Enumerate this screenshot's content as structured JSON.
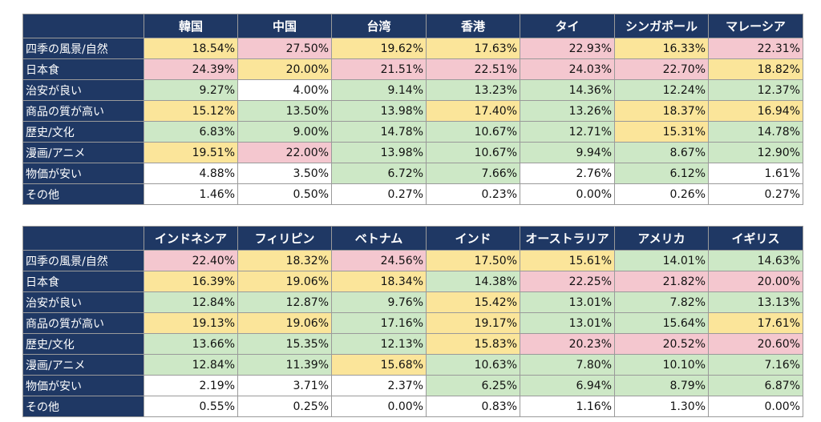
{
  "chart_data": [
    {
      "type": "table",
      "columns": [
        "韓国",
        "中国",
        "台湾",
        "香港",
        "タイ",
        "シンガポール",
        "マレーシア"
      ],
      "rows": [
        {
          "label": "四季の風景/自然",
          "values": [
            "18.54%",
            "27.50%",
            "19.62%",
            "17.63%",
            "22.93%",
            "16.33%",
            "22.31%"
          ],
          "colors": [
            "y",
            "r",
            "y",
            "y",
            "r",
            "y",
            "r"
          ]
        },
        {
          "label": "日本食",
          "values": [
            "24.39%",
            "20.00%",
            "21.51%",
            "22.51%",
            "24.03%",
            "22.70%",
            "18.82%"
          ],
          "colors": [
            "r",
            "y",
            "r",
            "r",
            "r",
            "r",
            "y"
          ]
        },
        {
          "label": "治安が良い",
          "values": [
            "9.27%",
            "4.00%",
            "9.14%",
            "13.23%",
            "14.36%",
            "12.24%",
            "12.37%"
          ],
          "colors": [
            "g",
            "w",
            "g",
            "g",
            "g",
            "g",
            "g"
          ]
        },
        {
          "label": "商品の質が高い",
          "values": [
            "15.12%",
            "13.50%",
            "13.98%",
            "17.40%",
            "13.26%",
            "18.37%",
            "16.94%"
          ],
          "colors": [
            "y",
            "g",
            "g",
            "y",
            "g",
            "y",
            "y"
          ]
        },
        {
          "label": "歴史/文化",
          "values": [
            "6.83%",
            "9.00%",
            "14.78%",
            "10.67%",
            "12.71%",
            "15.31%",
            "14.78%"
          ],
          "colors": [
            "g",
            "g",
            "g",
            "g",
            "g",
            "y",
            "g"
          ]
        },
        {
          "label": "漫画/アニメ",
          "values": [
            "19.51%",
            "22.00%",
            "13.98%",
            "10.67%",
            "9.94%",
            "8.67%",
            "12.90%"
          ],
          "colors": [
            "y",
            "r",
            "g",
            "g",
            "g",
            "g",
            "g"
          ]
        },
        {
          "label": "物価が安い",
          "values": [
            "4.88%",
            "3.50%",
            "6.72%",
            "7.66%",
            "2.76%",
            "6.12%",
            "1.61%"
          ],
          "colors": [
            "w",
            "w",
            "g",
            "g",
            "w",
            "g",
            "w"
          ]
        },
        {
          "label": "その他",
          "values": [
            "1.46%",
            "0.50%",
            "0.27%",
            "0.23%",
            "0.00%",
            "0.26%",
            "0.27%"
          ],
          "colors": [
            "w",
            "w",
            "w",
            "w",
            "w",
            "w",
            "w"
          ]
        }
      ]
    },
    {
      "type": "table",
      "columns": [
        "インドネシア",
        "フィリピン",
        "ベトナム",
        "インド",
        "オーストラリア",
        "アメリカ",
        "イギリス"
      ],
      "rows": [
        {
          "label": "四季の風景/自然",
          "values": [
            "22.40%",
            "18.32%",
            "24.56%",
            "17.50%",
            "15.61%",
            "14.01%",
            "14.63%"
          ],
          "colors": [
            "r",
            "y",
            "r",
            "y",
            "y",
            "g",
            "g"
          ]
        },
        {
          "label": "日本食",
          "values": [
            "16.39%",
            "19.06%",
            "18.34%",
            "14.38%",
            "22.25%",
            "21.82%",
            "20.00%"
          ],
          "colors": [
            "y",
            "y",
            "y",
            "g",
            "r",
            "r",
            "r"
          ]
        },
        {
          "label": "治安が良い",
          "values": [
            "12.84%",
            "12.87%",
            "9.76%",
            "15.42%",
            "13.01%",
            "7.82%",
            "13.13%"
          ],
          "colors": [
            "g",
            "g",
            "g",
            "y",
            "g",
            "g",
            "g"
          ]
        },
        {
          "label": "商品の質が高い",
          "values": [
            "19.13%",
            "19.06%",
            "17.16%",
            "19.17%",
            "13.01%",
            "15.64%",
            "17.61%"
          ],
          "colors": [
            "y",
            "y",
            "g",
            "y",
            "g",
            "g",
            "y"
          ]
        },
        {
          "label": "歴史/文化",
          "values": [
            "13.66%",
            "15.35%",
            "12.13%",
            "15.83%",
            "20.23%",
            "20.52%",
            "20.60%"
          ],
          "colors": [
            "g",
            "g",
            "g",
            "y",
            "r",
            "r",
            "r"
          ]
        },
        {
          "label": "漫画/アニメ",
          "values": [
            "12.84%",
            "11.39%",
            "15.68%",
            "10.63%",
            "7.80%",
            "10.10%",
            "7.16%"
          ],
          "colors": [
            "g",
            "g",
            "y",
            "g",
            "g",
            "g",
            "g"
          ]
        },
        {
          "label": "物価が安い",
          "values": [
            "2.19%",
            "3.71%",
            "2.37%",
            "6.25%",
            "6.94%",
            "8.79%",
            "6.87%"
          ],
          "colors": [
            "w",
            "w",
            "w",
            "g",
            "g",
            "g",
            "g"
          ]
        },
        {
          "label": "その他",
          "values": [
            "0.55%",
            "0.25%",
            "0.00%",
            "0.83%",
            "1.16%",
            "1.30%",
            "0.00%"
          ],
          "colors": [
            "w",
            "w",
            "w",
            "w",
            "w",
            "w",
            "w"
          ]
        }
      ]
    }
  ]
}
